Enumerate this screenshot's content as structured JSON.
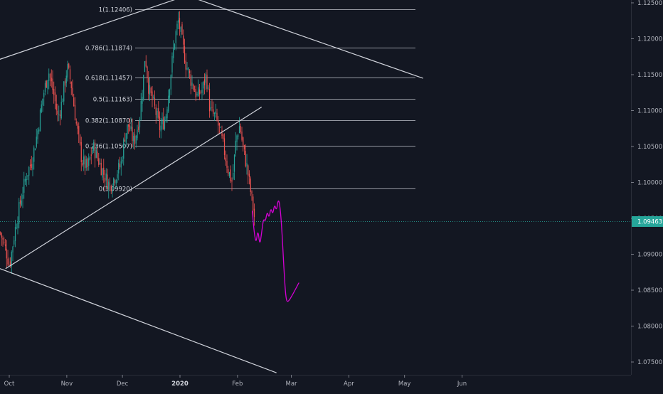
{
  "chart_data": {
    "type": "candlestick",
    "colors": {
      "background": "#131722",
      "up": "#26a69a",
      "down": "#ef5350",
      "trendline": "#d1d4dc",
      "fib_line": "#9598a1",
      "annotation": "#d500d5",
      "last_price_line": "#26a69a",
      "last_price_badge": "#26a69a"
    },
    "y_axis": {
      "range": [
        1.0735,
        1.1255
      ],
      "ticks": [
        "1.12500",
        "1.12000",
        "1.11500",
        "1.11000",
        "1.10500",
        "1.10000",
        "1.09500",
        "1.09000",
        "1.08500",
        "1.08000",
        "1.07500"
      ],
      "position": "right"
    },
    "x_axis": {
      "ticks": [
        {
          "label": "Oct",
          "bold": false
        },
        {
          "label": "Nov",
          "bold": false
        },
        {
          "label": "Dec",
          "bold": false
        },
        {
          "label": "2020",
          "bold": true
        },
        {
          "label": "Feb",
          "bold": false
        },
        {
          "label": "Mar",
          "bold": false
        },
        {
          "label": "Apr",
          "bold": false
        },
        {
          "label": "May",
          "bold": false
        },
        {
          "label": "Jun",
          "bold": false
        }
      ]
    },
    "last_price": {
      "value": 1.09463,
      "label": "1.09463"
    },
    "fibonacci": [
      {
        "label": "1(1.12406)",
        "price": 1.12406
      },
      {
        "label": "0.786(1.11874)",
        "price": 1.11874
      },
      {
        "label": "0.618(1.11457)",
        "price": 1.11457
      },
      {
        "label": "0.5(1.11163)",
        "price": 1.11163
      },
      {
        "label": "0.382(1.10870)",
        "price": 1.1087
      },
      {
        "label": "0.236(1.10507)",
        "price": 1.10507
      },
      {
        "label": "0(1.09920)",
        "price": 1.0992
      }
    ],
    "price_path": [
      [
        "2019-09-23",
        1.096
      ],
      [
        "2019-09-26",
        1.093
      ],
      [
        "2019-09-29",
        1.0905
      ],
      [
        "2019-10-01",
        1.0885
      ],
      [
        "2019-10-04",
        1.0935
      ],
      [
        "2019-10-07",
        1.0975
      ],
      [
        "2019-10-10",
        1.101
      ],
      [
        "2019-10-13",
        1.103
      ],
      [
        "2019-10-16",
        1.107
      ],
      [
        "2019-10-19",
        1.112
      ],
      [
        "2019-10-22",
        1.1155
      ],
      [
        "2019-10-25",
        1.112
      ],
      [
        "2019-10-27",
        1.109
      ],
      [
        "2019-10-29",
        1.111
      ],
      [
        "2019-11-01",
        1.116
      ],
      [
        "2019-11-03",
        1.114
      ],
      [
        "2019-11-06",
        1.108
      ],
      [
        "2019-11-09",
        1.103
      ],
      [
        "2019-11-12",
        1.102
      ],
      [
        "2019-11-15",
        1.105
      ],
      [
        "2019-11-18",
        1.103
      ],
      [
        "2019-11-21",
        1.101
      ],
      [
        "2019-11-24",
        1.0995
      ],
      [
        "2019-11-27",
        1.101
      ],
      [
        "2019-11-30",
        1.1025
      ],
      [
        "2019-12-02",
        1.1065
      ],
      [
        "2019-12-04",
        1.108
      ],
      [
        "2019-12-07",
        1.1055
      ],
      [
        "2019-12-10",
        1.109
      ],
      [
        "2019-12-12",
        1.114
      ],
      [
        "2019-12-13",
        1.118
      ],
      [
        "2019-12-15",
        1.113
      ],
      [
        "2019-12-18",
        1.1105
      ],
      [
        "2019-12-21",
        1.1075
      ],
      [
        "2019-12-24",
        1.109
      ],
      [
        "2019-12-27",
        1.1155
      ],
      [
        "2019-12-29",
        1.12
      ],
      [
        "2019-12-31",
        1.1225
      ],
      [
        "2020-01-02",
        1.1195
      ],
      [
        "2020-01-04",
        1.1165
      ],
      [
        "2020-01-07",
        1.114
      ],
      [
        "2020-01-10",
        1.112
      ],
      [
        "2020-01-13",
        1.113
      ],
      [
        "2020-01-15",
        1.115
      ],
      [
        "2020-01-17",
        1.11
      ],
      [
        "2020-01-20",
        1.109
      ],
      [
        "2020-01-22",
        1.1075
      ],
      [
        "2020-01-25",
        1.104
      ],
      [
        "2020-01-27",
        1.1015
      ],
      [
        "2020-01-29",
        1.1
      ],
      [
        "2020-01-31",
        1.106
      ],
      [
        "2020-02-02",
        1.108
      ],
      [
        "2020-02-04",
        1.1045
      ],
      [
        "2020-02-06",
        1.102
      ],
      [
        "2020-02-08",
        1.0985
      ],
      [
        "2020-02-10",
        1.095
      ]
    ],
    "trendlines": [
      {
        "name": "upper-left-resistance",
        "p1": [
          "2019-09-13",
          1.116
        ],
        "p2": [
          "2020-01-09",
          1.1264
        ]
      },
      {
        "name": "upper-right-resistance",
        "p1": [
          "2019-12-27",
          1.1268
        ],
        "p2": [
          "2020-05-11",
          1.1145
        ]
      },
      {
        "name": "rising-support",
        "p1": [
          "2019-09-29",
          1.088
        ],
        "p2": [
          "2020-02-14",
          1.1105
        ]
      },
      {
        "name": "lower-falling",
        "p1": [
          "2019-09-26",
          1.088
        ],
        "p2": [
          "2020-02-22",
          1.0735
        ]
      }
    ],
    "annotation_path": [
      [
        "2020-02-09",
        1.096
      ],
      [
        "2020-02-10",
        1.093
      ],
      [
        "2020-02-11",
        1.0915
      ],
      [
        "2020-02-12",
        1.0935
      ],
      [
        "2020-02-13",
        1.0912
      ],
      [
        "2020-02-14",
        1.093
      ],
      [
        "2020-02-15",
        1.095
      ],
      [
        "2020-02-16",
        1.0945
      ],
      [
        "2020-02-17",
        1.096
      ],
      [
        "2020-02-18",
        1.095
      ],
      [
        "2020-02-19",
        1.0965
      ],
      [
        "2020-02-20",
        1.0955
      ],
      [
        "2020-02-21",
        1.097
      ],
      [
        "2020-02-22",
        1.096
      ],
      [
        "2020-02-23",
        1.0978
      ],
      [
        "2020-02-24",
        1.0965
      ],
      [
        "2020-02-25",
        1.093
      ],
      [
        "2020-02-26",
        1.088
      ],
      [
        "2020-02-27",
        1.084
      ],
      [
        "2020-02-28",
        1.0832
      ],
      [
        "2020-03-02",
        1.0845
      ],
      [
        "2020-03-05",
        1.086
      ]
    ]
  }
}
